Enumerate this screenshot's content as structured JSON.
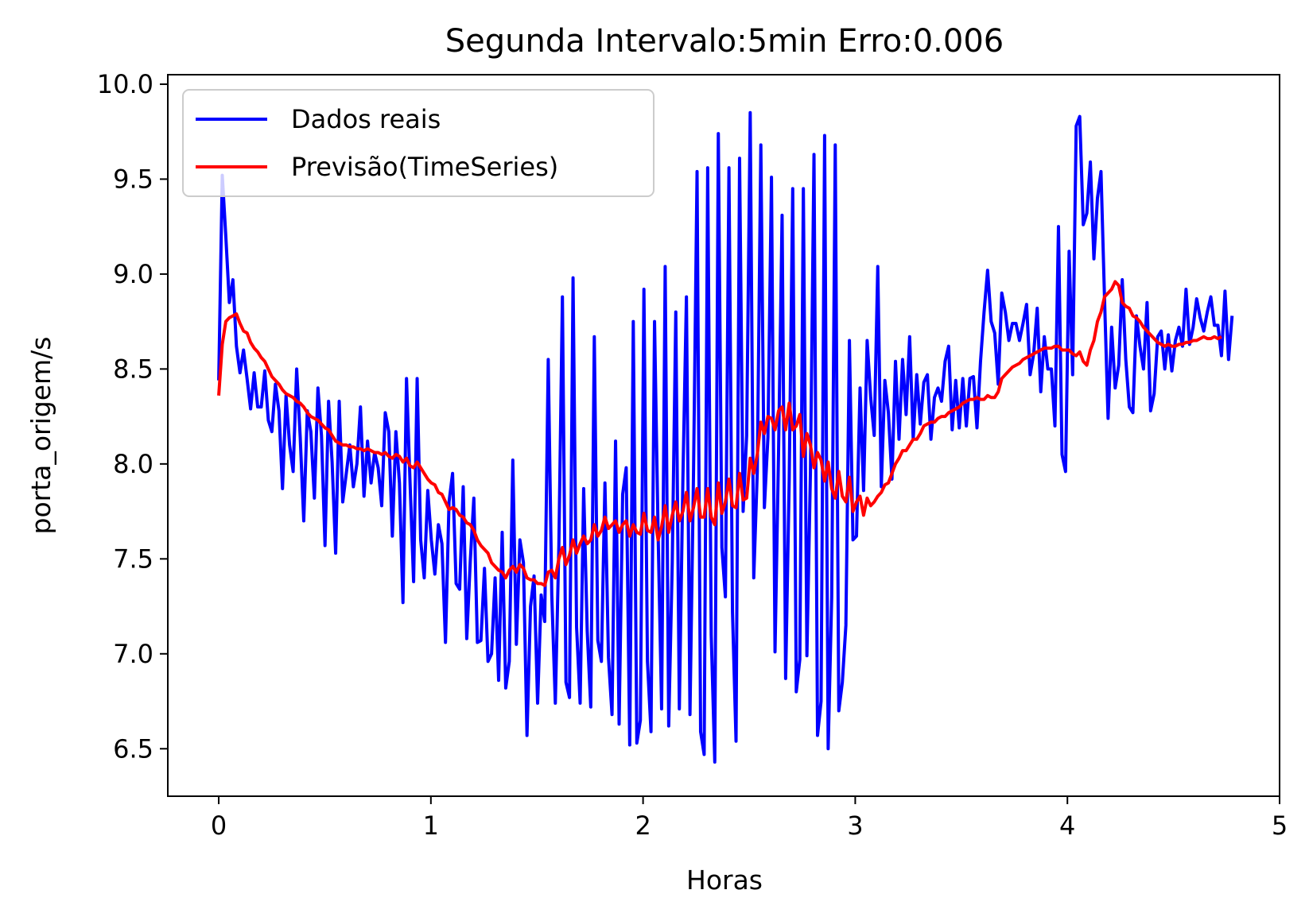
{
  "chart_data": {
    "type": "line",
    "title": "Segunda Intervalo:5min Erro:0.006",
    "xlabel": "Horas",
    "ylabel": "porta_origem/s",
    "xlim": [
      -0.24,
      5.0
    ],
    "ylim": [
      6.25,
      10.05
    ],
    "xticks": [
      0,
      1,
      2,
      3,
      4,
      5
    ],
    "xtick_labels": [
      "0",
      "1",
      "2",
      "3",
      "4",
      "5"
    ],
    "yticks": [
      6.5,
      7.0,
      7.5,
      8.0,
      8.5,
      9.0,
      9.5,
      10.0
    ],
    "ytick_labels": [
      "6.5",
      "7.0",
      "7.5",
      "8.0",
      "8.5",
      "9.0",
      "9.5",
      "10.0"
    ],
    "grid": false,
    "legend_position": "upper-left",
    "x_step": 0.0167,
    "series": [
      {
        "name": "Dados reais",
        "color": "#0000ff",
        "values": [
          8.44,
          9.52,
          9.2,
          8.85,
          8.97,
          8.62,
          8.48,
          8.6,
          8.45,
          8.29,
          8.48,
          8.3,
          8.3,
          8.49,
          8.23,
          8.17,
          8.42,
          8.28,
          7.87,
          8.36,
          8.1,
          7.96,
          8.5,
          8.14,
          7.7,
          8.28,
          8.17,
          7.82,
          8.4,
          8.15,
          7.57,
          8.33,
          8.01,
          7.53,
          8.33,
          7.8,
          7.95,
          8.1,
          7.88,
          8.0,
          8.3,
          7.83,
          8.12,
          7.9,
          8.06,
          7.98,
          7.78,
          8.27,
          8.17,
          7.62,
          8.17,
          7.9,
          7.27,
          8.45,
          7.9,
          7.38,
          8.45,
          7.6,
          7.4,
          7.86,
          7.6,
          7.42,
          7.68,
          7.58,
          7.06,
          7.8,
          7.95,
          7.37,
          7.34,
          7.88,
          7.08,
          7.49,
          7.82,
          7.06,
          7.07,
          7.45,
          6.96,
          7.0,
          7.4,
          6.86,
          7.64,
          6.82,
          6.96,
          8.02,
          7.05,
          7.6,
          7.48,
          6.57,
          7.25,
          7.41,
          6.74,
          7.31,
          7.17,
          8.55,
          7.31,
          6.74,
          7.57,
          8.88,
          6.85,
          6.77,
          8.98,
          7.14,
          6.74,
          7.87,
          7.12,
          6.72,
          8.67,
          7.07,
          6.96,
          7.9,
          6.98,
          6.68,
          8.12,
          6.63,
          7.84,
          7.98,
          6.52,
          8.75,
          6.53,
          6.65,
          8.92,
          6.96,
          6.59,
          8.75,
          7.64,
          6.71,
          9.04,
          6.62,
          7.48,
          8.8,
          6.71,
          7.92,
          8.88,
          6.68,
          7.95,
          9.54,
          6.59,
          6.47,
          9.56,
          7.1,
          6.43,
          9.74,
          7.56,
          7.3,
          9.56,
          7.22,
          6.54,
          9.61,
          7.75,
          8.15,
          9.85,
          7.4,
          7.96,
          9.68,
          7.77,
          8.14,
          9.51,
          7.01,
          8.06,
          9.31,
          6.87,
          7.91,
          9.45,
          6.8,
          6.97,
          9.45,
          6.99,
          7.96,
          9.63,
          6.57,
          6.75,
          9.73,
          6.5,
          7.3,
          9.68,
          6.7,
          6.85,
          7.15,
          8.65,
          7.6,
          7.62,
          8.4,
          7.86,
          8.65,
          8.35,
          8.15,
          9.04,
          7.88,
          8.44,
          8.27,
          7.92,
          8.54,
          8.13,
          8.55,
          8.26,
          8.67,
          8.13,
          8.47,
          8.21,
          8.43,
          8.47,
          8.13,
          8.35,
          8.4,
          8.33,
          8.54,
          8.62,
          8.18,
          8.44,
          8.19,
          8.45,
          8.2,
          8.45,
          8.46,
          8.19,
          8.54,
          8.8,
          9.02,
          8.75,
          8.69,
          8.42,
          8.9,
          8.8,
          8.65,
          8.74,
          8.74,
          8.65,
          8.74,
          8.84,
          8.47,
          8.58,
          8.82,
          8.38,
          8.67,
          8.5,
          8.5,
          8.2,
          9.25,
          8.05,
          7.96,
          9.12,
          8.47,
          9.78,
          9.83,
          9.26,
          9.32,
          9.59,
          9.08,
          9.4,
          9.54,
          8.87,
          8.24,
          8.72,
          8.4,
          8.52,
          8.97,
          8.55,
          8.3,
          8.27,
          8.78,
          8.62,
          8.5,
          8.85,
          8.28,
          8.37,
          8.67,
          8.7,
          8.5,
          8.68,
          8.49,
          8.65,
          8.72,
          8.62,
          8.92,
          8.63,
          8.72,
          8.87,
          8.77,
          8.7,
          8.8,
          8.88,
          8.73,
          8.73,
          8.57,
          8.91,
          8.55,
          8.78
        ]
      },
      {
        "name": "Previsão(TimeSeries)",
        "color": "#ff0000",
        "values": [
          8.36,
          8.63,
          8.75,
          8.77,
          8.78,
          8.79,
          8.74,
          8.7,
          8.69,
          8.64,
          8.61,
          8.59,
          8.56,
          8.54,
          8.5,
          8.46,
          8.44,
          8.42,
          8.39,
          8.37,
          8.36,
          8.35,
          8.33,
          8.32,
          8.3,
          8.27,
          8.25,
          8.24,
          8.23,
          8.21,
          8.19,
          8.18,
          8.15,
          8.12,
          8.11,
          8.1,
          8.1,
          8.09,
          8.09,
          8.08,
          8.08,
          8.07,
          8.08,
          8.07,
          8.06,
          8.06,
          8.05,
          8.06,
          8.04,
          8.03,
          8.05,
          8.04,
          8.01,
          8.03,
          7.99,
          7.98,
          8.01,
          7.98,
          7.95,
          7.92,
          7.9,
          7.89,
          7.85,
          7.84,
          7.8,
          7.76,
          7.77,
          7.76,
          7.73,
          7.72,
          7.69,
          7.68,
          7.65,
          7.6,
          7.57,
          7.55,
          7.53,
          7.48,
          7.46,
          7.44,
          7.43,
          7.4,
          7.44,
          7.46,
          7.43,
          7.47,
          7.45,
          7.4,
          7.39,
          7.39,
          7.37,
          7.37,
          7.36,
          7.43,
          7.44,
          7.4,
          7.5,
          7.56,
          7.47,
          7.52,
          7.6,
          7.53,
          7.58,
          7.62,
          7.58,
          7.6,
          7.68,
          7.62,
          7.65,
          7.72,
          7.66,
          7.68,
          7.7,
          7.64,
          7.68,
          7.7,
          7.62,
          7.68,
          7.64,
          7.63,
          7.74,
          7.65,
          7.64,
          7.72,
          7.6,
          7.67,
          7.78,
          7.64,
          7.73,
          7.8,
          7.7,
          7.75,
          7.85,
          7.7,
          7.77,
          7.87,
          7.72,
          7.72,
          7.87,
          7.72,
          7.68,
          7.9,
          7.74,
          7.8,
          7.92,
          7.78,
          7.77,
          7.95,
          7.81,
          7.82,
          8.03,
          7.95,
          8.05,
          8.22,
          8.16,
          8.25,
          8.24,
          8.18,
          8.28,
          8.3,
          8.18,
          8.32,
          8.18,
          8.2,
          8.26,
          8.04,
          8.16,
          8.1,
          7.98,
          8.06,
          8.02,
          7.91,
          8.01,
          7.87,
          7.82,
          7.96,
          7.83,
          7.8,
          7.93,
          7.75,
          7.8,
          7.83,
          7.73,
          7.82,
          7.78,
          7.8,
          7.83,
          7.85,
          7.89,
          7.9,
          7.95,
          8.0,
          8.03,
          8.07,
          8.07,
          8.1,
          8.13,
          8.13,
          8.16,
          8.2,
          8.21,
          8.22,
          8.22,
          8.24,
          8.25,
          8.25,
          8.27,
          8.28,
          8.29,
          8.3,
          8.32,
          8.33,
          8.34,
          8.34,
          8.35,
          8.34,
          8.34,
          8.36,
          8.35,
          8.35,
          8.38,
          8.45,
          8.47,
          8.49,
          8.51,
          8.52,
          8.53,
          8.55,
          8.56,
          8.57,
          8.58,
          8.59,
          8.6,
          8.61,
          8.61,
          8.61,
          8.62,
          8.62,
          8.6,
          8.6,
          8.6,
          8.58,
          8.57,
          8.59,
          8.54,
          8.52,
          8.6,
          8.65,
          8.75,
          8.8,
          8.88,
          8.9,
          8.92,
          8.96,
          8.94,
          8.85,
          8.83,
          8.82,
          8.78,
          8.77,
          8.75,
          8.72,
          8.7,
          8.68,
          8.66,
          8.64,
          8.63,
          8.62,
          8.63,
          8.62,
          8.62,
          8.63,
          8.63,
          8.64,
          8.64,
          8.65,
          8.65,
          8.66,
          8.67,
          8.66,
          8.66,
          8.67,
          8.66,
          8.67
        ]
      }
    ]
  }
}
